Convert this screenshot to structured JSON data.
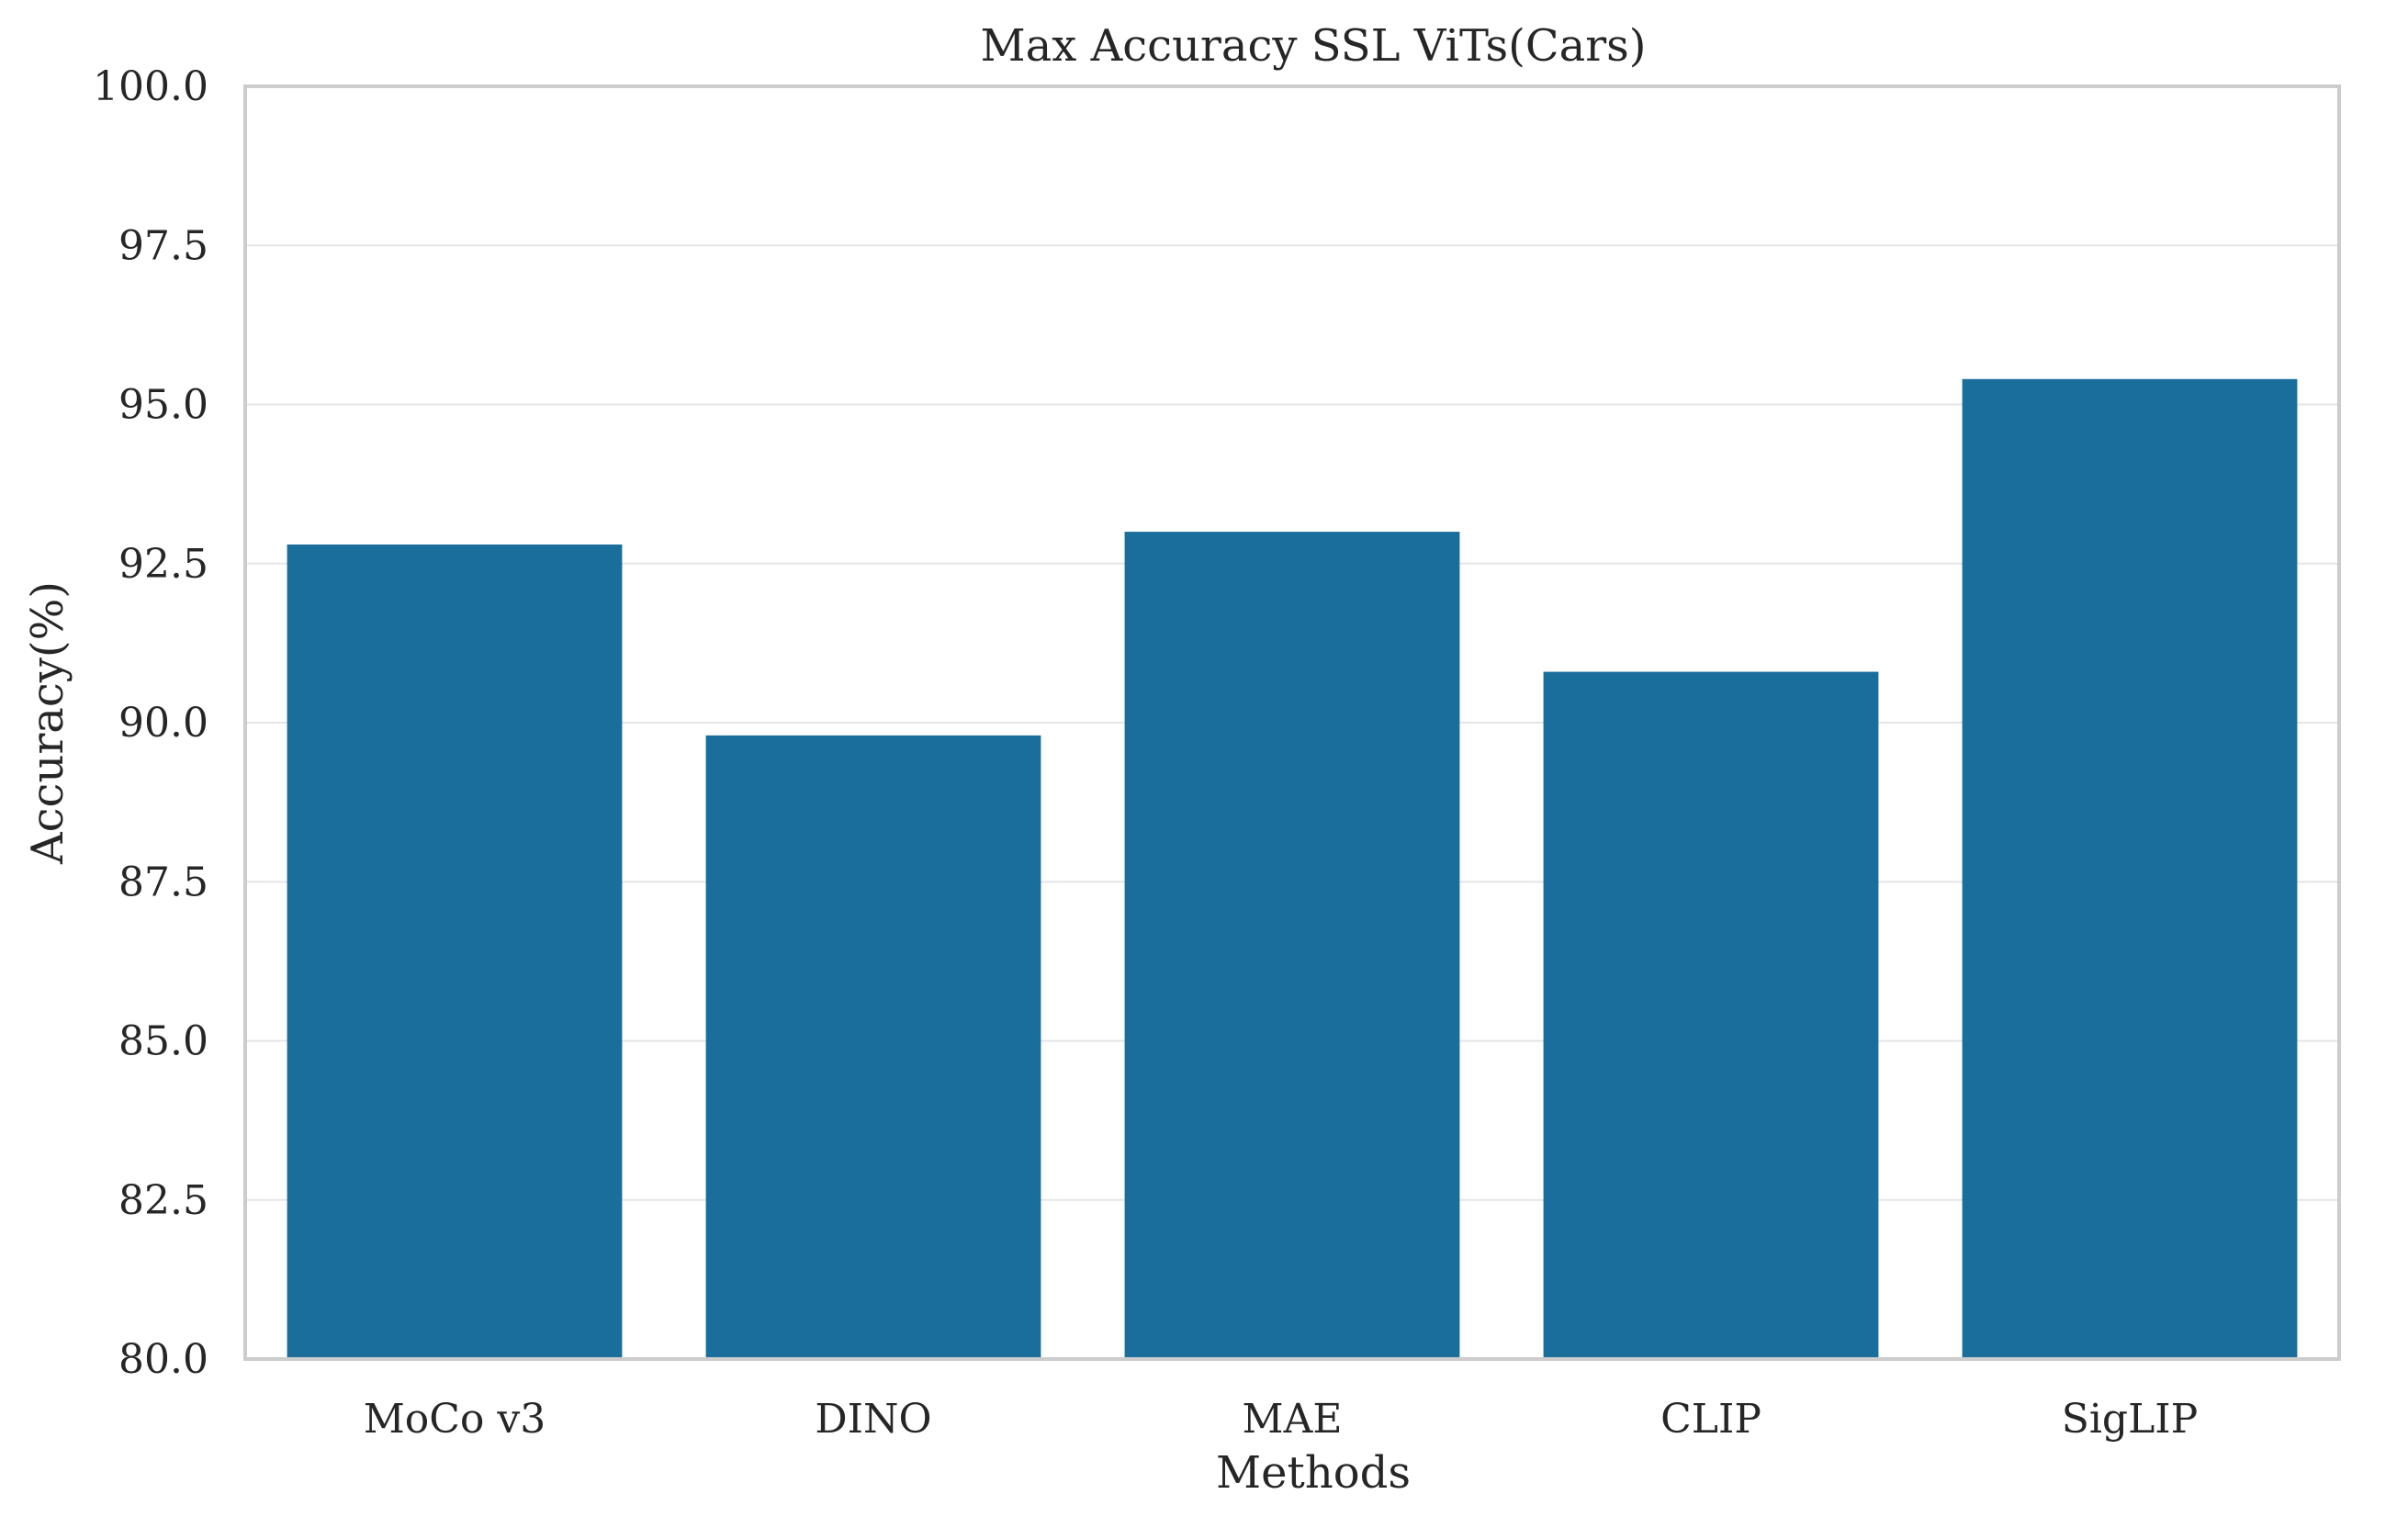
{
  "chart_data": {
    "type": "bar",
    "title": "Max Accuracy SSL ViTs(Cars)",
    "xlabel": "Methods",
    "ylabel": "Accuracy(%)",
    "categories": [
      "MoCo v3",
      "DINO",
      "MAE",
      "CLIP",
      "SigLIP"
    ],
    "values": [
      92.8,
      89.8,
      93.0,
      90.8,
      95.4
    ],
    "ylim": [
      80.0,
      100.0
    ],
    "yticks": [
      "80.0",
      "82.5",
      "85.0",
      "87.5",
      "90.0",
      "92.5",
      "95.0",
      "97.5",
      "100.0"
    ],
    "grid": "horizontal",
    "bar_color": "#1a6e9c",
    "grid_color": "#e5e5e5",
    "frame_color": "#cccccc"
  }
}
